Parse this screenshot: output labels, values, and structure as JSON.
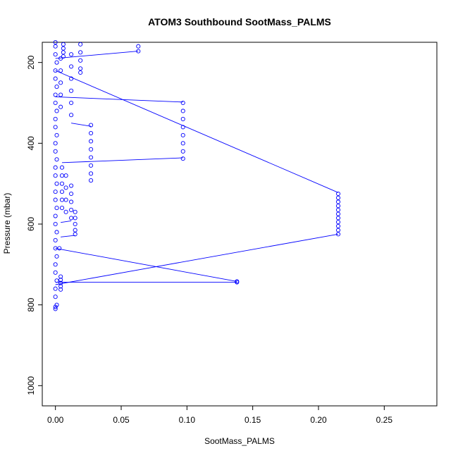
{
  "chart_data": {
    "type": "scatter",
    "title": "ATOM3 Southbound SootMass_PALMS",
    "xlabel": "SootMass_PALMS",
    "ylabel": "Pressure (mbar)",
    "xlim": [
      -0.01,
      0.29
    ],
    "ylim": [
      1050,
      150
    ],
    "y_reversed": true,
    "xticks": [
      0.0,
      0.05,
      0.1,
      0.15,
      0.2,
      0.25
    ],
    "xtick_labels": [
      "0.00",
      "0.05",
      "0.10",
      "0.15",
      "0.20",
      "0.25"
    ],
    "yticks": [
      200,
      400,
      600,
      800,
      1000
    ],
    "ytick_labels": [
      "200",
      "400",
      "600",
      "800",
      "1000"
    ],
    "grid": false,
    "colors": {
      "series": "#0000ff",
      "axis": "#000000"
    },
    "series": [
      {
        "points": [
          [
            0.0,
            810
          ],
          [
            0.0,
            805
          ],
          [
            0.001,
            800
          ],
          [
            0.0,
            780
          ],
          [
            0.0,
            760
          ],
          [
            0.001,
            740
          ],
          [
            0.0,
            720
          ],
          [
            0.0,
            700
          ],
          [
            0.001,
            680
          ],
          [
            0.0,
            660
          ],
          [
            0.0,
            640
          ],
          [
            0.001,
            620
          ],
          [
            0.0,
            600
          ],
          [
            0.0,
            580
          ],
          [
            0.001,
            560
          ],
          [
            0.0,
            540
          ],
          [
            0.0,
            520
          ],
          [
            0.001,
            500
          ],
          [
            0.0,
            480
          ],
          [
            0.0,
            460
          ],
          [
            0.001,
            440
          ],
          [
            0.0,
            420
          ],
          [
            0.0,
            400
          ],
          [
            0.001,
            380
          ],
          [
            0.0,
            360
          ],
          [
            0.0,
            340
          ],
          [
            0.001,
            320
          ],
          [
            0.0,
            300
          ],
          [
            0.0,
            280
          ],
          [
            0.001,
            260
          ],
          [
            0.0,
            240
          ],
          [
            0.0,
            220
          ],
          [
            0.001,
            200
          ],
          [
            0.0,
            180
          ],
          [
            0.0,
            160
          ],
          [
            0.0,
            150
          ],
          [
            0.004,
            730
          ],
          [
            0.004,
            738
          ],
          [
            0.004,
            746
          ],
          [
            0.004,
            754
          ],
          [
            0.004,
            762
          ],
          [
            0.138,
            742
          ],
          [
            0.138,
            744
          ],
          [
            0.003,
            660
          ],
          [
            0.215,
            625
          ],
          [
            0.215,
            615
          ],
          [
            0.215,
            605
          ],
          [
            0.215,
            595
          ],
          [
            0.215,
            585
          ],
          [
            0.215,
            575
          ],
          [
            0.215,
            565
          ],
          [
            0.215,
            555
          ],
          [
            0.215,
            545
          ],
          [
            0.215,
            535
          ],
          [
            0.215,
            525
          ],
          [
            0.005,
            460
          ],
          [
            0.005,
            480
          ],
          [
            0.005,
            500
          ],
          [
            0.005,
            520
          ],
          [
            0.005,
            540
          ],
          [
            0.005,
            560
          ],
          [
            0.008,
            480
          ],
          [
            0.008,
            510
          ],
          [
            0.008,
            540
          ],
          [
            0.008,
            570
          ],
          [
            0.012,
            505
          ],
          [
            0.012,
            525
          ],
          [
            0.012,
            545
          ],
          [
            0.012,
            565
          ],
          [
            0.012,
            585
          ],
          [
            0.015,
            570
          ],
          [
            0.015,
            585
          ],
          [
            0.015,
            600
          ],
          [
            0.015,
            615
          ],
          [
            0.015,
            625
          ],
          [
            0.027,
            355
          ],
          [
            0.027,
            375
          ],
          [
            0.027,
            395
          ],
          [
            0.027,
            415
          ],
          [
            0.027,
            435
          ],
          [
            0.027,
            455
          ],
          [
            0.027,
            475
          ],
          [
            0.027,
            492
          ],
          [
            0.097,
            300
          ],
          [
            0.097,
            320
          ],
          [
            0.097,
            340
          ],
          [
            0.097,
            360
          ],
          [
            0.097,
            380
          ],
          [
            0.097,
            400
          ],
          [
            0.097,
            420
          ],
          [
            0.097,
            438
          ],
          [
            0.012,
            180
          ],
          [
            0.012,
            210
          ],
          [
            0.012,
            240
          ],
          [
            0.012,
            270
          ],
          [
            0.012,
            300
          ],
          [
            0.012,
            330
          ],
          [
            0.019,
            155
          ],
          [
            0.019,
            175
          ],
          [
            0.019,
            195
          ],
          [
            0.019,
            215
          ],
          [
            0.019,
            225
          ],
          [
            0.006,
            155
          ],
          [
            0.006,
            165
          ],
          [
            0.006,
            175
          ],
          [
            0.006,
            185
          ],
          [
            0.063,
            160
          ],
          [
            0.063,
            172
          ],
          [
            0.004,
            190
          ],
          [
            0.004,
            220
          ],
          [
            0.004,
            250
          ],
          [
            0.004,
            280
          ],
          [
            0.004,
            310
          ]
        ]
      }
    ],
    "line_segments": [
      [
        [
          0.0,
          190
        ],
        [
          0.063,
          172
        ]
      ],
      [
        [
          0.0,
          220
        ],
        [
          0.215,
          522
        ]
      ],
      [
        [
          0.0,
          285
        ],
        [
          0.097,
          298
        ]
      ],
      [
        [
          0.012,
          350
        ],
        [
          0.027,
          358
        ]
      ],
      [
        [
          0.005,
          448
        ],
        [
          0.097,
          436
        ]
      ],
      [
        [
          0.0,
          750
        ],
        [
          0.215,
          625
        ]
      ],
      [
        [
          0.0,
          660
        ],
        [
          0.138,
          742
        ]
      ],
      [
        [
          0.0,
          744
        ],
        [
          0.138,
          744
        ]
      ],
      [
        [
          0.004,
          596
        ],
        [
          0.012,
          592
        ]
      ],
      [
        [
          0.004,
          632
        ],
        [
          0.015,
          628
        ]
      ]
    ]
  }
}
